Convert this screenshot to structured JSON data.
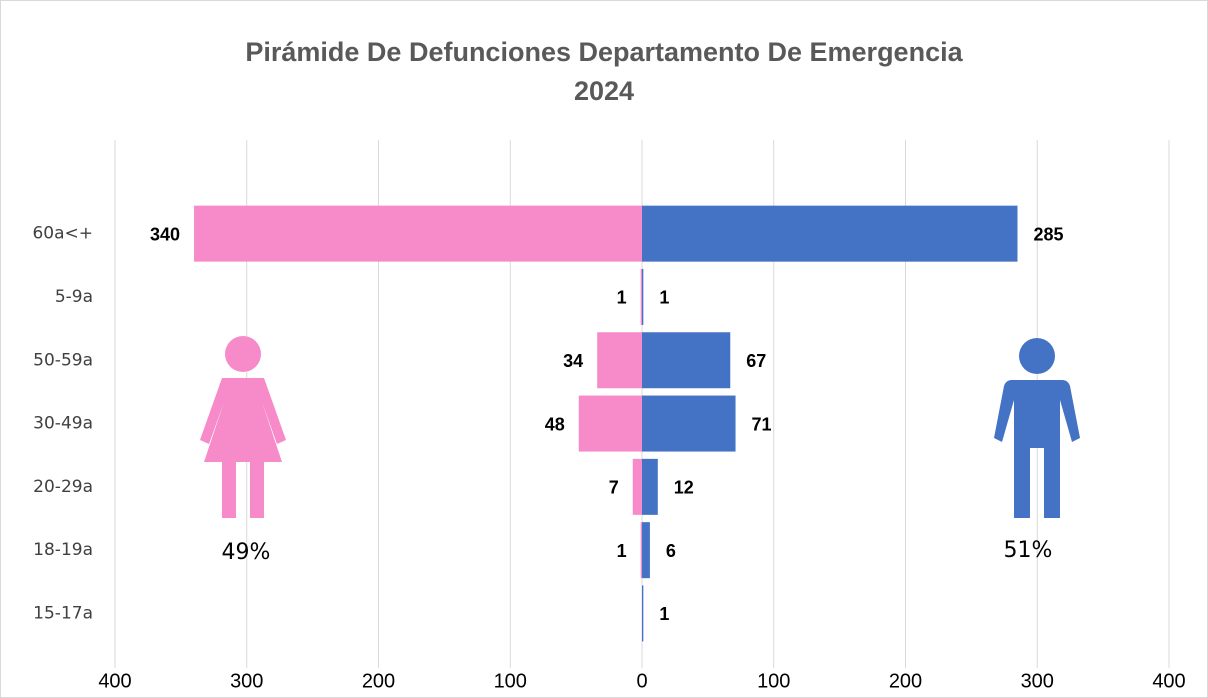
{
  "chart_data": {
    "type": "pyramid",
    "title": "Pirámide De Defunciones Departamento De Emergencia",
    "subtitle": "2024",
    "categories": [
      "60a<+",
      "5-9a",
      "50-59a",
      "30-49a",
      "20-29a",
      "18-19a",
      "15-17a"
    ],
    "series": [
      {
        "side": "left",
        "color": "#f78ac9",
        "values": [
          340,
          1,
          34,
          48,
          7,
          1,
          null
        ],
        "percent_label": "49%"
      },
      {
        "side": "right",
        "color": "#4472c4",
        "values": [
          285,
          1,
          67,
          71,
          12,
          6,
          1
        ],
        "percent_label": "51%"
      }
    ],
    "xlim": [
      -400,
      400
    ],
    "xticks": [
      {
        "value": -400,
        "label": "400"
      },
      {
        "value": -300,
        "label": "300"
      },
      {
        "value": -200,
        "label": "200"
      },
      {
        "value": -100,
        "label": "100"
      },
      0,
      100,
      200,
      300,
      400
    ],
    "grid": true
  }
}
